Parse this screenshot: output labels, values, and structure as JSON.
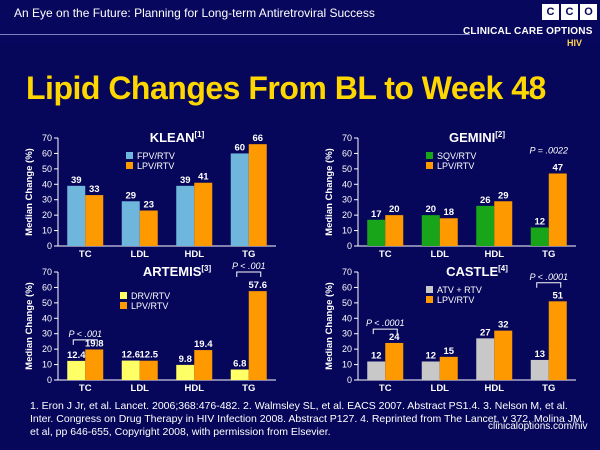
{
  "header": {
    "title": "An Eye on the Future: Planning for Long-term Antiretroviral Success",
    "logo_letters": [
      "C",
      "C",
      "O"
    ],
    "logo_text": "CLINICAL CARE OPTIONS",
    "logo_sub": "HIV"
  },
  "title": "Lipid Changes From BL to Week 48",
  "colors": {
    "background": "#06065a",
    "title": "#ffd700",
    "orange": "#ff9900",
    "blue": "#6fb6dd",
    "green": "#19a519",
    "yellow": "#ffff66",
    "gray": "#c8c8c8"
  },
  "chart_data": [
    {
      "type": "bar",
      "title": "KLEAN",
      "title_ref": "[1]",
      "ylabel": "Median Change (%)",
      "ylim": [
        0,
        70
      ],
      "yticks": [
        0,
        10,
        20,
        30,
        40,
        50,
        60,
        70
      ],
      "categories": [
        "TC",
        "LDL",
        "HDL",
        "TG"
      ],
      "series": [
        {
          "name": "FPV/RTV",
          "color": "#6fb6dd",
          "values": [
            39,
            29,
            39,
            60
          ],
          "labels": [
            "39",
            "29",
            "39",
            "60"
          ]
        },
        {
          "name": "LPV/RTV",
          "color": "#ff9900",
          "values": [
            33,
            23,
            41,
            66
          ],
          "labels": [
            "33",
            "23",
            "41",
            "66"
          ]
        }
      ],
      "legend": "top-left",
      "annotations": []
    },
    {
      "type": "bar",
      "title": "GEMINI",
      "title_ref": "[2]",
      "ylabel": "Median Change (%)",
      "ylim": [
        0,
        70
      ],
      "yticks": [
        0,
        10,
        20,
        30,
        40,
        50,
        60,
        70
      ],
      "categories": [
        "TC",
        "LDL",
        "HDL",
        "TG"
      ],
      "series": [
        {
          "name": "SQV/RTV",
          "color": "#19a519",
          "values": [
            17,
            20,
            26,
            12
          ],
          "labels": [
            "17",
            "20",
            "26",
            "12"
          ]
        },
        {
          "name": "LPV/RTV",
          "color": "#ff9900",
          "values": [
            20,
            18,
            29,
            47
          ],
          "labels": [
            "20",
            "18",
            "29",
            "47"
          ]
        }
      ],
      "legend": "top-left",
      "annotations": [
        {
          "text": "P = .0022",
          "category": 3,
          "y": 58,
          "bracket": false
        }
      ]
    },
    {
      "type": "bar",
      "title": "ARTEMIS",
      "title_ref": "[3]",
      "ylabel": "Median Change (%)",
      "ylim": [
        0,
        70
      ],
      "yticks": [
        0,
        10,
        20,
        30,
        40,
        50,
        60,
        70
      ],
      "categories": [
        "TC",
        "LDL",
        "HDL",
        "TG"
      ],
      "series": [
        {
          "name": "DRV/RTV",
          "color": "#ffff66",
          "values": [
            12.4,
            12.6,
            9.8,
            6.8
          ],
          "labels": [
            "12.4",
            "12.6",
            "9.8",
            "6.8"
          ]
        },
        {
          "name": "LPV/RTV",
          "color": "#ff9900",
          "values": [
            19.8,
            12.5,
            19.4,
            57.6
          ],
          "labels": [
            "19.8",
            "12.5",
            "19.4",
            "57.6"
          ]
        }
      ],
      "legend": "top-center",
      "annotations": [
        {
          "text": "P < .001",
          "category": 0,
          "y": 26,
          "bracket": true
        },
        {
          "text": "P < .001",
          "category": 3,
          "y": 70,
          "bracket": true
        }
      ]
    },
    {
      "type": "bar",
      "title": "CASTLE",
      "title_ref": "[4]",
      "ylabel": "Median Change (%)",
      "ylim": [
        0,
        70
      ],
      "yticks": [
        0,
        10,
        20,
        30,
        40,
        50,
        60,
        70
      ],
      "categories": [
        "TC",
        "LDL",
        "HDL",
        "TG"
      ],
      "series": [
        {
          "name": "ATV + RTV",
          "color": "#c8c8c8",
          "values": [
            12,
            12,
            27,
            13
          ],
          "labels": [
            "12",
            "12",
            "27",
            "13"
          ]
        },
        {
          "name": "LPV/RTV",
          "color": "#ff9900",
          "values": [
            24,
            15,
            32,
            51
          ],
          "labels": [
            "24",
            "15",
            "32",
            "51"
          ]
        }
      ],
      "legend": "top-left",
      "annotations": [
        {
          "text": "P < .0001",
          "category": 0,
          "y": 33,
          "bracket": true
        },
        {
          "text": "P < .0001",
          "category": 3,
          "y": 63,
          "bracket": true
        }
      ]
    }
  ],
  "footnote": "1. Eron J Jr, et al. Lancet. 2006;368:476-482. 2. Walmsley SL, et al. EACS 2007. Abstract PS1.4. 3. Nelson M, et al. Inter. Congress on Drug Therapy in HIV Infection 2008. Abstract P127. 4. Reprinted from The Lancet, v 372, Molina JM, et al, pp 646-655, Copyright 2008, with permission from Elsevier.",
  "site": "clinicaloptions.com/hiv"
}
